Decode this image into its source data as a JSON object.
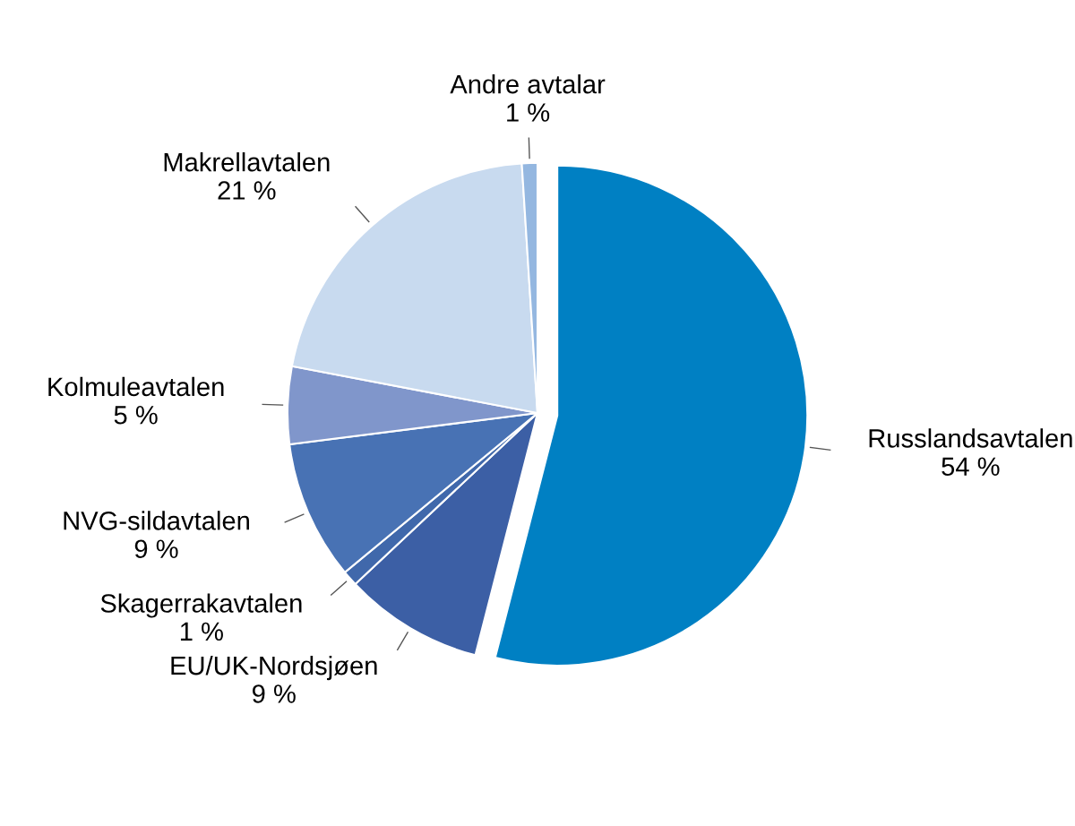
{
  "chart_data": {
    "type": "pie",
    "categories": [
      "Russlandsavtalen",
      "EU/UK-Nordsjøen",
      "Skagerrakavtalen",
      "NVG-sildavtalen",
      "Kolmuleavtalen",
      "Makrellavtalen",
      "Andre avtalar"
    ],
    "values": [
      54,
      9,
      1,
      9,
      5,
      21,
      1
    ],
    "value_labels": [
      "54 %",
      "9 %",
      "1 %",
      "9 %",
      "5 %",
      "21 %",
      "1 %"
    ],
    "colors": [
      "#0080c3",
      "#3c5fa5",
      "#4068ab",
      "#4872b4",
      "#8096cb",
      "#c8daef",
      "#94b7e0"
    ]
  }
}
